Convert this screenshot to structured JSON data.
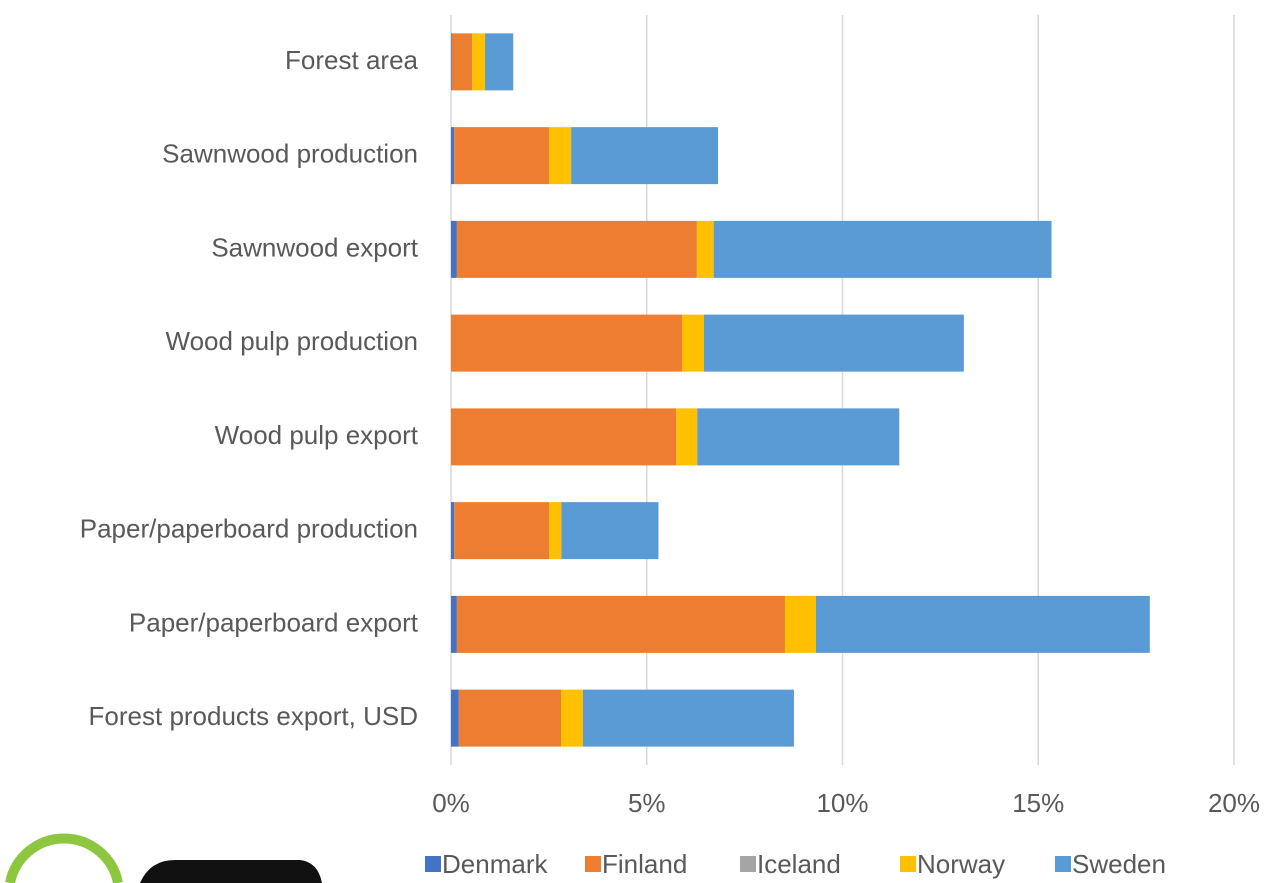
{
  "chart_data": {
    "type": "stacked-bar-horizontal",
    "categories": [
      "Forest area",
      "Sawnwood production",
      "Sawnwood export",
      "Wood pulp production",
      "Wood pulp export",
      "Paper/paperboard production",
      "Paper/paperboard export",
      "Forest products export, USD"
    ],
    "series": [
      {
        "name": "Denmark",
        "color": "#4472c4",
        "values": [
          0.02,
          0.08,
          0.15,
          0,
          0,
          0.08,
          0.15,
          0.2
        ]
      },
      {
        "name": "Finland",
        "color": "#ed7d31",
        "values": [
          0.52,
          2.43,
          6.13,
          5.9,
          5.75,
          2.43,
          8.38,
          2.61
        ]
      },
      {
        "name": "Iceland",
        "color": "#a5a5a5",
        "values": [
          0,
          0,
          0,
          0,
          0,
          0,
          0,
          0
        ]
      },
      {
        "name": "Norway",
        "color": "#ffc000",
        "values": [
          0.33,
          0.56,
          0.43,
          0.56,
          0.54,
          0.31,
          0.79,
          0.56
        ]
      },
      {
        "name": "Sweden",
        "color": "#5b9bd5",
        "values": [
          0.72,
          3.75,
          8.63,
          6.64,
          5.16,
          2.48,
          8.53,
          5.39
        ]
      }
    ],
    "xlim": [
      0,
      20
    ],
    "xticks": [
      {
        "value": 0,
        "label": "0%"
      },
      {
        "value": 5,
        "label": "5%"
      },
      {
        "value": 10,
        "label": "10%"
      },
      {
        "value": 15,
        "label": "15%"
      },
      {
        "value": 20,
        "label": "20%"
      }
    ],
    "grid": true,
    "legend": "bottom"
  }
}
